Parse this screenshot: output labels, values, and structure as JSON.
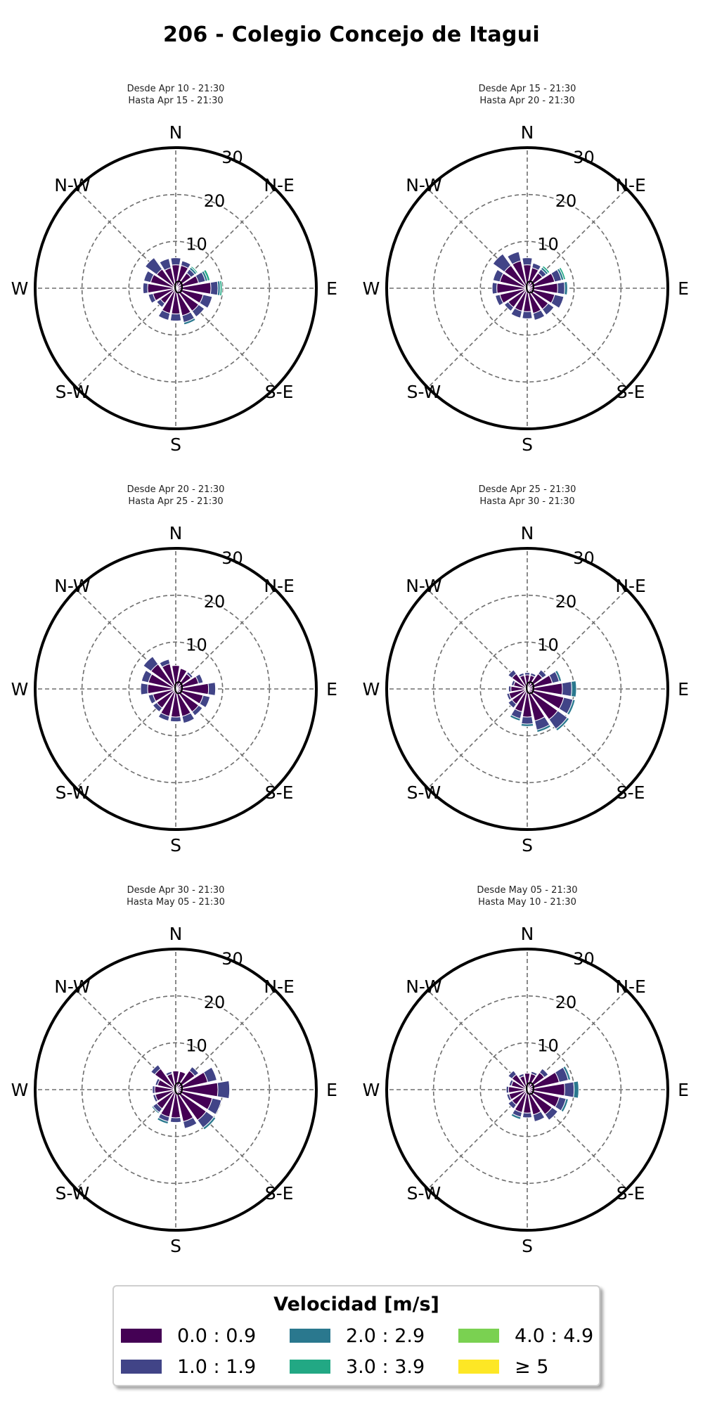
{
  "title": "206 - Colegio Concejo de Itagui",
  "directions": [
    "N",
    "N-E",
    "E",
    "S-E",
    "S",
    "S-W",
    "W",
    "N-W"
  ],
  "chart_data": [
    {
      "type": "windrose",
      "subtitle_line1": "Desde Apr 10 - 21:30",
      "subtitle_line2": "Hasta Apr 15 - 21:30",
      "radial_ticks": [
        "0",
        "10",
        "20",
        "30"
      ],
      "rmax": 30,
      "petals": [
        {
          "dir": 0,
          "values": [
            5,
            1.5
          ]
        },
        {
          "dir": 22.5,
          "values": [
            5,
            1
          ]
        },
        {
          "dir": 45,
          "values": [
            4,
            1,
            0.5,
            0.3
          ]
        },
        {
          "dir": 67.5,
          "values": [
            5,
            1.5,
            0.5,
            0.5
          ]
        },
        {
          "dir": 90,
          "values": [
            7.5,
            1.5,
            0.5,
            0.4
          ]
        },
        {
          "dir": 112.5,
          "values": [
            6,
            2
          ]
        },
        {
          "dir": 135,
          "values": [
            6,
            1.5
          ]
        },
        {
          "dir": 157.5,
          "values": [
            6,
            1.5,
            0.5
          ]
        },
        {
          "dir": 180,
          "values": [
            5.5,
            1.5
          ]
        },
        {
          "dir": 202.5,
          "values": [
            5.5,
            1.5
          ]
        },
        {
          "dir": 225,
          "values": [
            4,
            1
          ]
        },
        {
          "dir": 247.5,
          "values": [
            5,
            1
          ]
        },
        {
          "dir": 270,
          "values": [
            6,
            1
          ]
        },
        {
          "dir": 292.5,
          "values": [
            5.5,
            1.5
          ]
        },
        {
          "dir": 315,
          "values": [
            5,
            3
          ]
        },
        {
          "dir": 337.5,
          "values": [
            4.5,
            2
          ]
        }
      ]
    },
    {
      "type": "windrose",
      "subtitle_line1": "Desde Apr 15 - 21:30",
      "subtitle_line2": "Hasta Apr 20 - 21:30",
      "radial_ticks": [
        "0",
        "10",
        "20",
        "30"
      ],
      "rmax": 30,
      "petals": [
        {
          "dir": 0,
          "values": [
            5,
            1.5
          ]
        },
        {
          "dir": 22.5,
          "values": [
            4.5,
            1
          ]
        },
        {
          "dir": 45,
          "values": [
            4,
            1,
            0.5,
            0.4
          ]
        },
        {
          "dir": 67.5,
          "values": [
            6,
            1.5,
            0.5,
            0.4
          ]
        },
        {
          "dir": 90,
          "values": [
            6.5,
            1.5,
            0.6
          ]
        },
        {
          "dir": 112.5,
          "values": [
            6,
            2
          ]
        },
        {
          "dir": 135,
          "values": [
            5.5,
            1.5
          ]
        },
        {
          "dir": 157.5,
          "values": [
            5.5,
            1.5
          ]
        },
        {
          "dir": 180,
          "values": [
            5,
            1.5
          ]
        },
        {
          "dir": 202.5,
          "values": [
            5,
            1.5
          ]
        },
        {
          "dir": 225,
          "values": [
            5,
            1
          ]
        },
        {
          "dir": 247.5,
          "values": [
            6,
            1
          ]
        },
        {
          "dir": 270,
          "values": [
            6.5,
            1
          ]
        },
        {
          "dir": 292.5,
          "values": [
            6,
            1.5
          ]
        },
        {
          "dir": 315,
          "values": [
            6,
            3
          ]
        },
        {
          "dir": 337.5,
          "values": [
            6,
            2
          ]
        }
      ]
    },
    {
      "type": "windrose",
      "subtitle_line1": "Desde Apr 20 - 21:30",
      "subtitle_line2": "Hasta Apr 25 - 21:30",
      "radial_ticks": [
        "0",
        "10",
        "20",
        "30"
      ],
      "rmax": 30,
      "petals": [
        {
          "dir": 0,
          "values": [
            5
          ]
        },
        {
          "dir": 22.5,
          "values": [
            4.5
          ]
        },
        {
          "dir": 45,
          "values": [
            4,
            0.5
          ]
        },
        {
          "dir": 67.5,
          "values": [
            5,
            1
          ]
        },
        {
          "dir": 90,
          "values": [
            7,
            1.5
          ]
        },
        {
          "dir": 112.5,
          "values": [
            6,
            1.5
          ]
        },
        {
          "dir": 135,
          "values": [
            6,
            1
          ]
        },
        {
          "dir": 157.5,
          "values": [
            6,
            1.5
          ]
        },
        {
          "dir": 180,
          "values": [
            6,
            1
          ]
        },
        {
          "dir": 202.5,
          "values": [
            6,
            1
          ]
        },
        {
          "dir": 225,
          "values": [
            5,
            1
          ]
        },
        {
          "dir": 247.5,
          "values": [
            5,
            1
          ]
        },
        {
          "dir": 270,
          "values": [
            6,
            1.5
          ]
        },
        {
          "dir": 292.5,
          "values": [
            6,
            1.5
          ]
        },
        {
          "dir": 315,
          "values": [
            6.5,
            2
          ]
        },
        {
          "dir": 337.5,
          "values": [
            5.5,
            1
          ]
        }
      ]
    },
    {
      "type": "windrose",
      "subtitle_line1": "Desde Apr 25 - 21:30",
      "subtitle_line2": "Hasta Apr 30 - 21:30",
      "radial_ticks": [
        "0",
        "10",
        "20",
        "30"
      ],
      "rmax": 30,
      "petals": [
        {
          "dir": 0,
          "values": [
            3,
            0.5
          ]
        },
        {
          "dir": 22.5,
          "values": [
            3,
            0.5
          ]
        },
        {
          "dir": 45,
          "values": [
            4,
            1
          ]
        },
        {
          "dir": 67.5,
          "values": [
            5.5,
            1.5,
            0.5
          ]
        },
        {
          "dir": 90,
          "values": [
            7.5,
            2,
            1
          ]
        },
        {
          "dir": 112.5,
          "values": [
            8,
            2,
            0.5
          ]
        },
        {
          "dir": 135,
          "values": [
            8,
            2.5,
            0.5
          ]
        },
        {
          "dir": 157.5,
          "values": [
            7,
            2,
            0.5
          ]
        },
        {
          "dir": 180,
          "values": [
            6,
            1.5,
            0.5
          ]
        },
        {
          "dir": 202.5,
          "values": [
            5,
            1.5,
            0.5
          ]
        },
        {
          "dir": 225,
          "values": [
            4,
            1
          ]
        },
        {
          "dir": 247.5,
          "values": [
            4,
            0.5
          ]
        },
        {
          "dir": 270,
          "values": [
            3.5,
            0.5
          ]
        },
        {
          "dir": 292.5,
          "values": [
            3,
            0.5
          ]
        },
        {
          "dir": 315,
          "values": [
            4,
            1
          ]
        },
        {
          "dir": 337.5,
          "values": [
            3,
            0.5
          ]
        }
      ]
    },
    {
      "type": "windrose",
      "subtitle_line1": "Desde Apr 30 - 21:30",
      "subtitle_line2": "Hasta May 05 - 21:30",
      "radial_ticks": [
        "0",
        "10",
        "20",
        "30"
      ],
      "rmax": 30,
      "petals": [
        {
          "dir": 0,
          "values": [
            4
          ]
        },
        {
          "dir": 22.5,
          "values": [
            4
          ]
        },
        {
          "dir": 45,
          "values": [
            5,
            1
          ]
        },
        {
          "dir": 67.5,
          "values": [
            7,
            2
          ]
        },
        {
          "dir": 90,
          "values": [
            9,
            2.5
          ]
        },
        {
          "dir": 112.5,
          "values": [
            8,
            2
          ]
        },
        {
          "dir": 135,
          "values": [
            8,
            2,
            0.5
          ]
        },
        {
          "dir": 157.5,
          "values": [
            7,
            1.5
          ]
        },
        {
          "dir": 180,
          "values": [
            6,
            1
          ]
        },
        {
          "dir": 202.5,
          "values": [
            6,
            1,
            0.5
          ]
        },
        {
          "dir": 225,
          "values": [
            5,
            1,
            0.3
          ]
        },
        {
          "dir": 247.5,
          "values": [
            4.5,
            0.5
          ]
        },
        {
          "dir": 270,
          "values": [
            4.5,
            0.5
          ]
        },
        {
          "dir": 292.5,
          "values": [
            4,
            0.5
          ]
        },
        {
          "dir": 315,
          "values": [
            5.5,
            1
          ]
        },
        {
          "dir": 337.5,
          "values": [
            3.5,
            0.5
          ]
        }
      ]
    },
    {
      "type": "windrose",
      "subtitle_line1": "Desde May 05 - 21:30",
      "subtitle_line2": "Hasta May 10 - 21:30",
      "radial_ticks": [
        "0",
        "10",
        "20",
        "30"
      ],
      "rmax": 30,
      "petals": [
        {
          "dir": 0,
          "values": [
            3.5
          ]
        },
        {
          "dir": 22.5,
          "values": [
            3.5,
            0.5
          ]
        },
        {
          "dir": 45,
          "values": [
            4.5,
            1
          ]
        },
        {
          "dir": 67.5,
          "values": [
            7,
            2,
            0.5
          ]
        },
        {
          "dir": 90,
          "values": [
            8,
            2,
            1
          ]
        },
        {
          "dir": 112.5,
          "values": [
            7,
            1.5,
            0.5
          ]
        },
        {
          "dir": 135,
          "values": [
            6.5,
            1.5
          ]
        },
        {
          "dir": 157.5,
          "values": [
            5.5,
            1.5
          ]
        },
        {
          "dir": 180,
          "values": [
            5,
            1
          ]
        },
        {
          "dir": 202.5,
          "values": [
            5,
            1,
            0.5
          ]
        },
        {
          "dir": 225,
          "values": [
            4,
            1
          ]
        },
        {
          "dir": 247.5,
          "values": [
            4,
            0.5
          ]
        },
        {
          "dir": 270,
          "values": [
            4,
            0.5
          ]
        },
        {
          "dir": 292.5,
          "values": [
            3.5,
            0.5
          ]
        },
        {
          "dir": 315,
          "values": [
            4,
            1
          ]
        },
        {
          "dir": 337.5,
          "values": [
            3,
            0.5
          ]
        }
      ]
    }
  ],
  "legend": {
    "title": "Velocidad [m/s]",
    "items": [
      {
        "label": "0.0 : 0.9",
        "color": "#440154"
      },
      {
        "label": "2.0 : 2.9",
        "color": "#2a788e"
      },
      {
        "label": "4.0 : 4.9",
        "color": "#7ad151"
      },
      {
        "label": "1.0 : 1.9",
        "color": "#414487"
      },
      {
        "label": "3.0 : 3.9",
        "color": "#22a884"
      },
      {
        "label": "≥  5",
        "color": "#fde725"
      }
    ]
  }
}
